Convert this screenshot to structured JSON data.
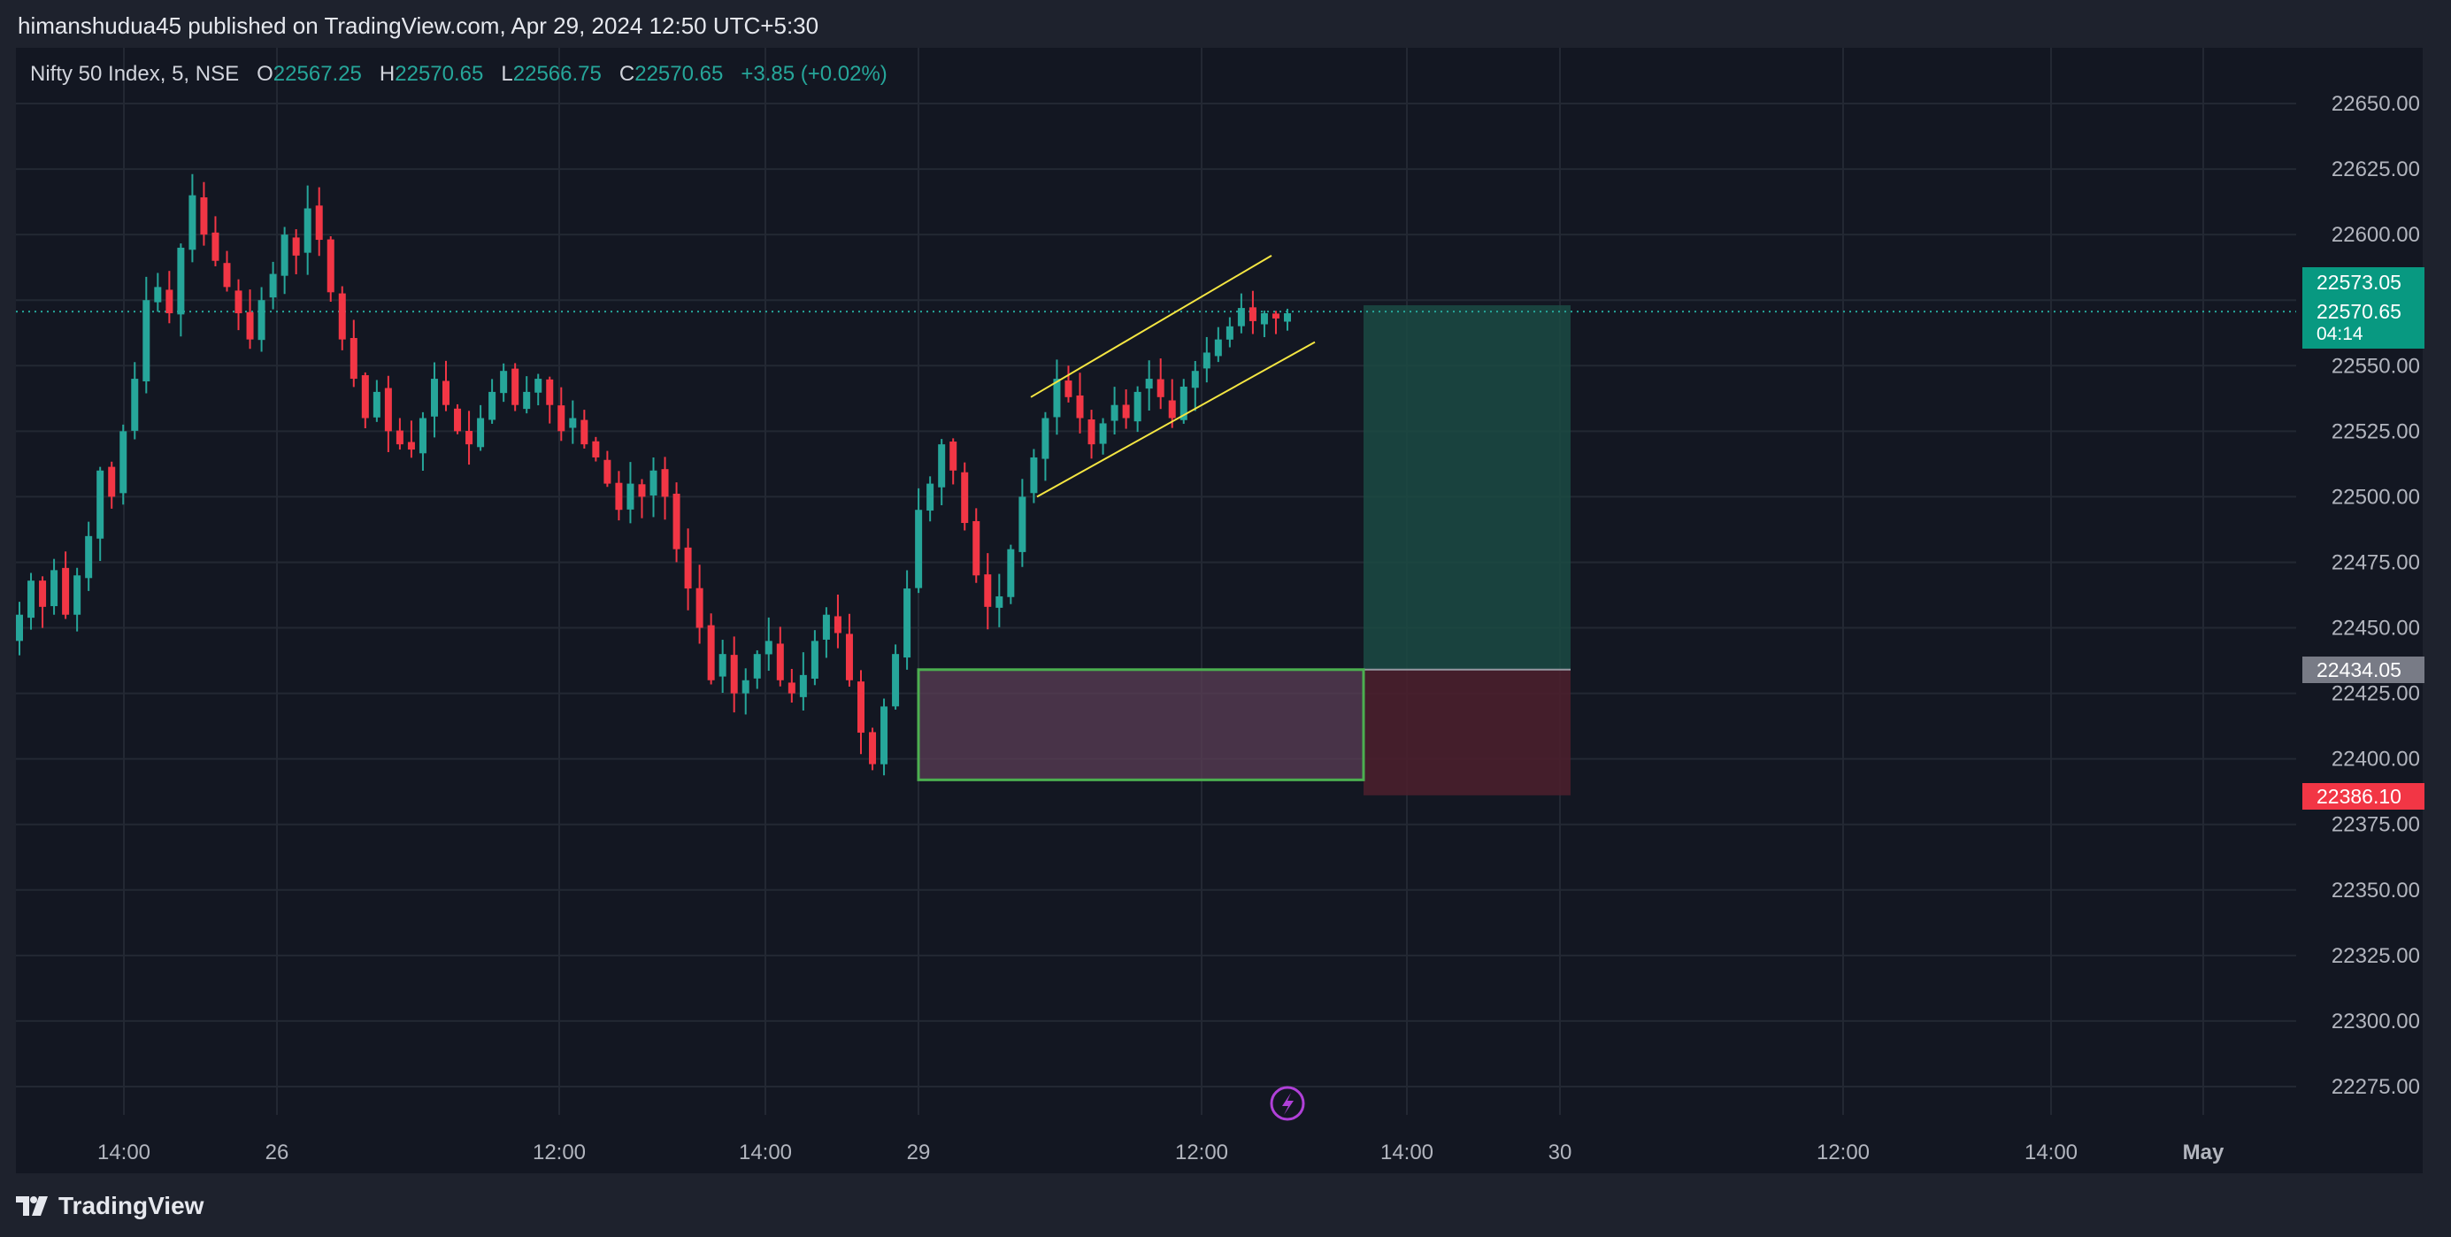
{
  "header": {
    "publisher": "himanshudua45 published on TradingView.com, Apr 29, 2024 12:50 UTC+5:30"
  },
  "legend": {
    "symbol": "Nifty 50 Index, 5, NSE",
    "o_label": "O",
    "o_value": "22567.25",
    "h_label": "H",
    "h_value": "22570.65",
    "l_label": "L",
    "l_value": "22566.75",
    "c_label": "C",
    "c_value": "22570.65",
    "change": "+3.85 (+0.02%)"
  },
  "price_tags": {
    "target": "22573.05",
    "last": "22570.65",
    "countdown": "04:14",
    "entry": "22434.05",
    "stop": "22386.10"
  },
  "footer": {
    "brand": "TradingView"
  },
  "colors": {
    "background": "#131722",
    "up": "#26a69a",
    "down": "#f23645",
    "channel": "#f5e642",
    "zone_border": "#4caf50",
    "target_zone": "#1b4a43",
    "stop_zone": "#4a1f2c"
  },
  "chart_data": {
    "type": "candlestick",
    "title": "Nifty 50 Index, 5, NSE",
    "y_ticks": [
      "22650.00",
      "22625.00",
      "22600.00",
      "22575.00",
      "22550.00",
      "22525.00",
      "22500.00",
      "22475.00",
      "22450.00",
      "22425.00",
      "22400.00",
      "22375.00",
      "22350.00",
      "22325.00",
      "22300.00",
      "22275.00"
    ],
    "x_ticks": [
      "14:00",
      "26",
      "12:00",
      "14:00",
      "29",
      "12:00",
      "14:00",
      "30",
      "12:00",
      "14:00",
      "May"
    ],
    "ylim": [
      22250,
      22665
    ],
    "grid": true,
    "last_price": 22570.65,
    "close_path": [
      22455,
      22468,
      22458,
      22472,
      22455,
      22470,
      22485,
      22510,
      22500,
      22525,
      22545,
      22575,
      22580,
      22570,
      22595,
      22615,
      22600,
      22590,
      22580,
      22570,
      22560,
      22575,
      22585,
      22600,
      22592,
      22610,
      22598,
      22578,
      22560,
      22545,
      22530,
      22540,
      22525,
      22520,
      22518,
      22530,
      22545,
      22535,
      22525,
      22520,
      22530,
      22540,
      22548,
      22535,
      22540,
      22545,
      22535,
      22525,
      22530,
      22520,
      22515,
      22505,
      22495,
      22505,
      22500,
      22510,
      22500,
      22480,
      22465,
      22450,
      22430,
      22440,
      22425,
      22430,
      22440,
      22445,
      22430,
      22425,
      22432,
      22445,
      22455,
      22448,
      22430,
      22410,
      22398,
      22420,
      22440,
      22465,
      22495,
      22505,
      22520,
      22510,
      22490,
      22470,
      22458,
      22462,
      22480,
      22500,
      22515,
      22530,
      22545,
      22538,
      22530,
      22520,
      22528,
      22535,
      22530,
      22540,
      22545,
      22538,
      22530,
      22542,
      22548,
      22555,
      22560,
      22565,
      22572,
      22567,
      22570,
      22568,
      22570
    ],
    "channel": {
      "upper": {
        "from": {
          "x": "11:05 Apr 29",
          "y": 22538
        },
        "to": {
          "x": "12:15 Apr 29",
          "y": 22592
        }
      },
      "lower": {
        "from": {
          "x": "11:05 Apr 29",
          "y": 22500
        },
        "to": {
          "x": "12:25 Apr 29",
          "y": 22559
        }
      }
    },
    "demand_zone": {
      "y_top": 22434.05,
      "y_bottom": 22392
    },
    "long_position": {
      "entry": 22434.05,
      "target": 22573.05,
      "stop": 22386.1
    }
  }
}
